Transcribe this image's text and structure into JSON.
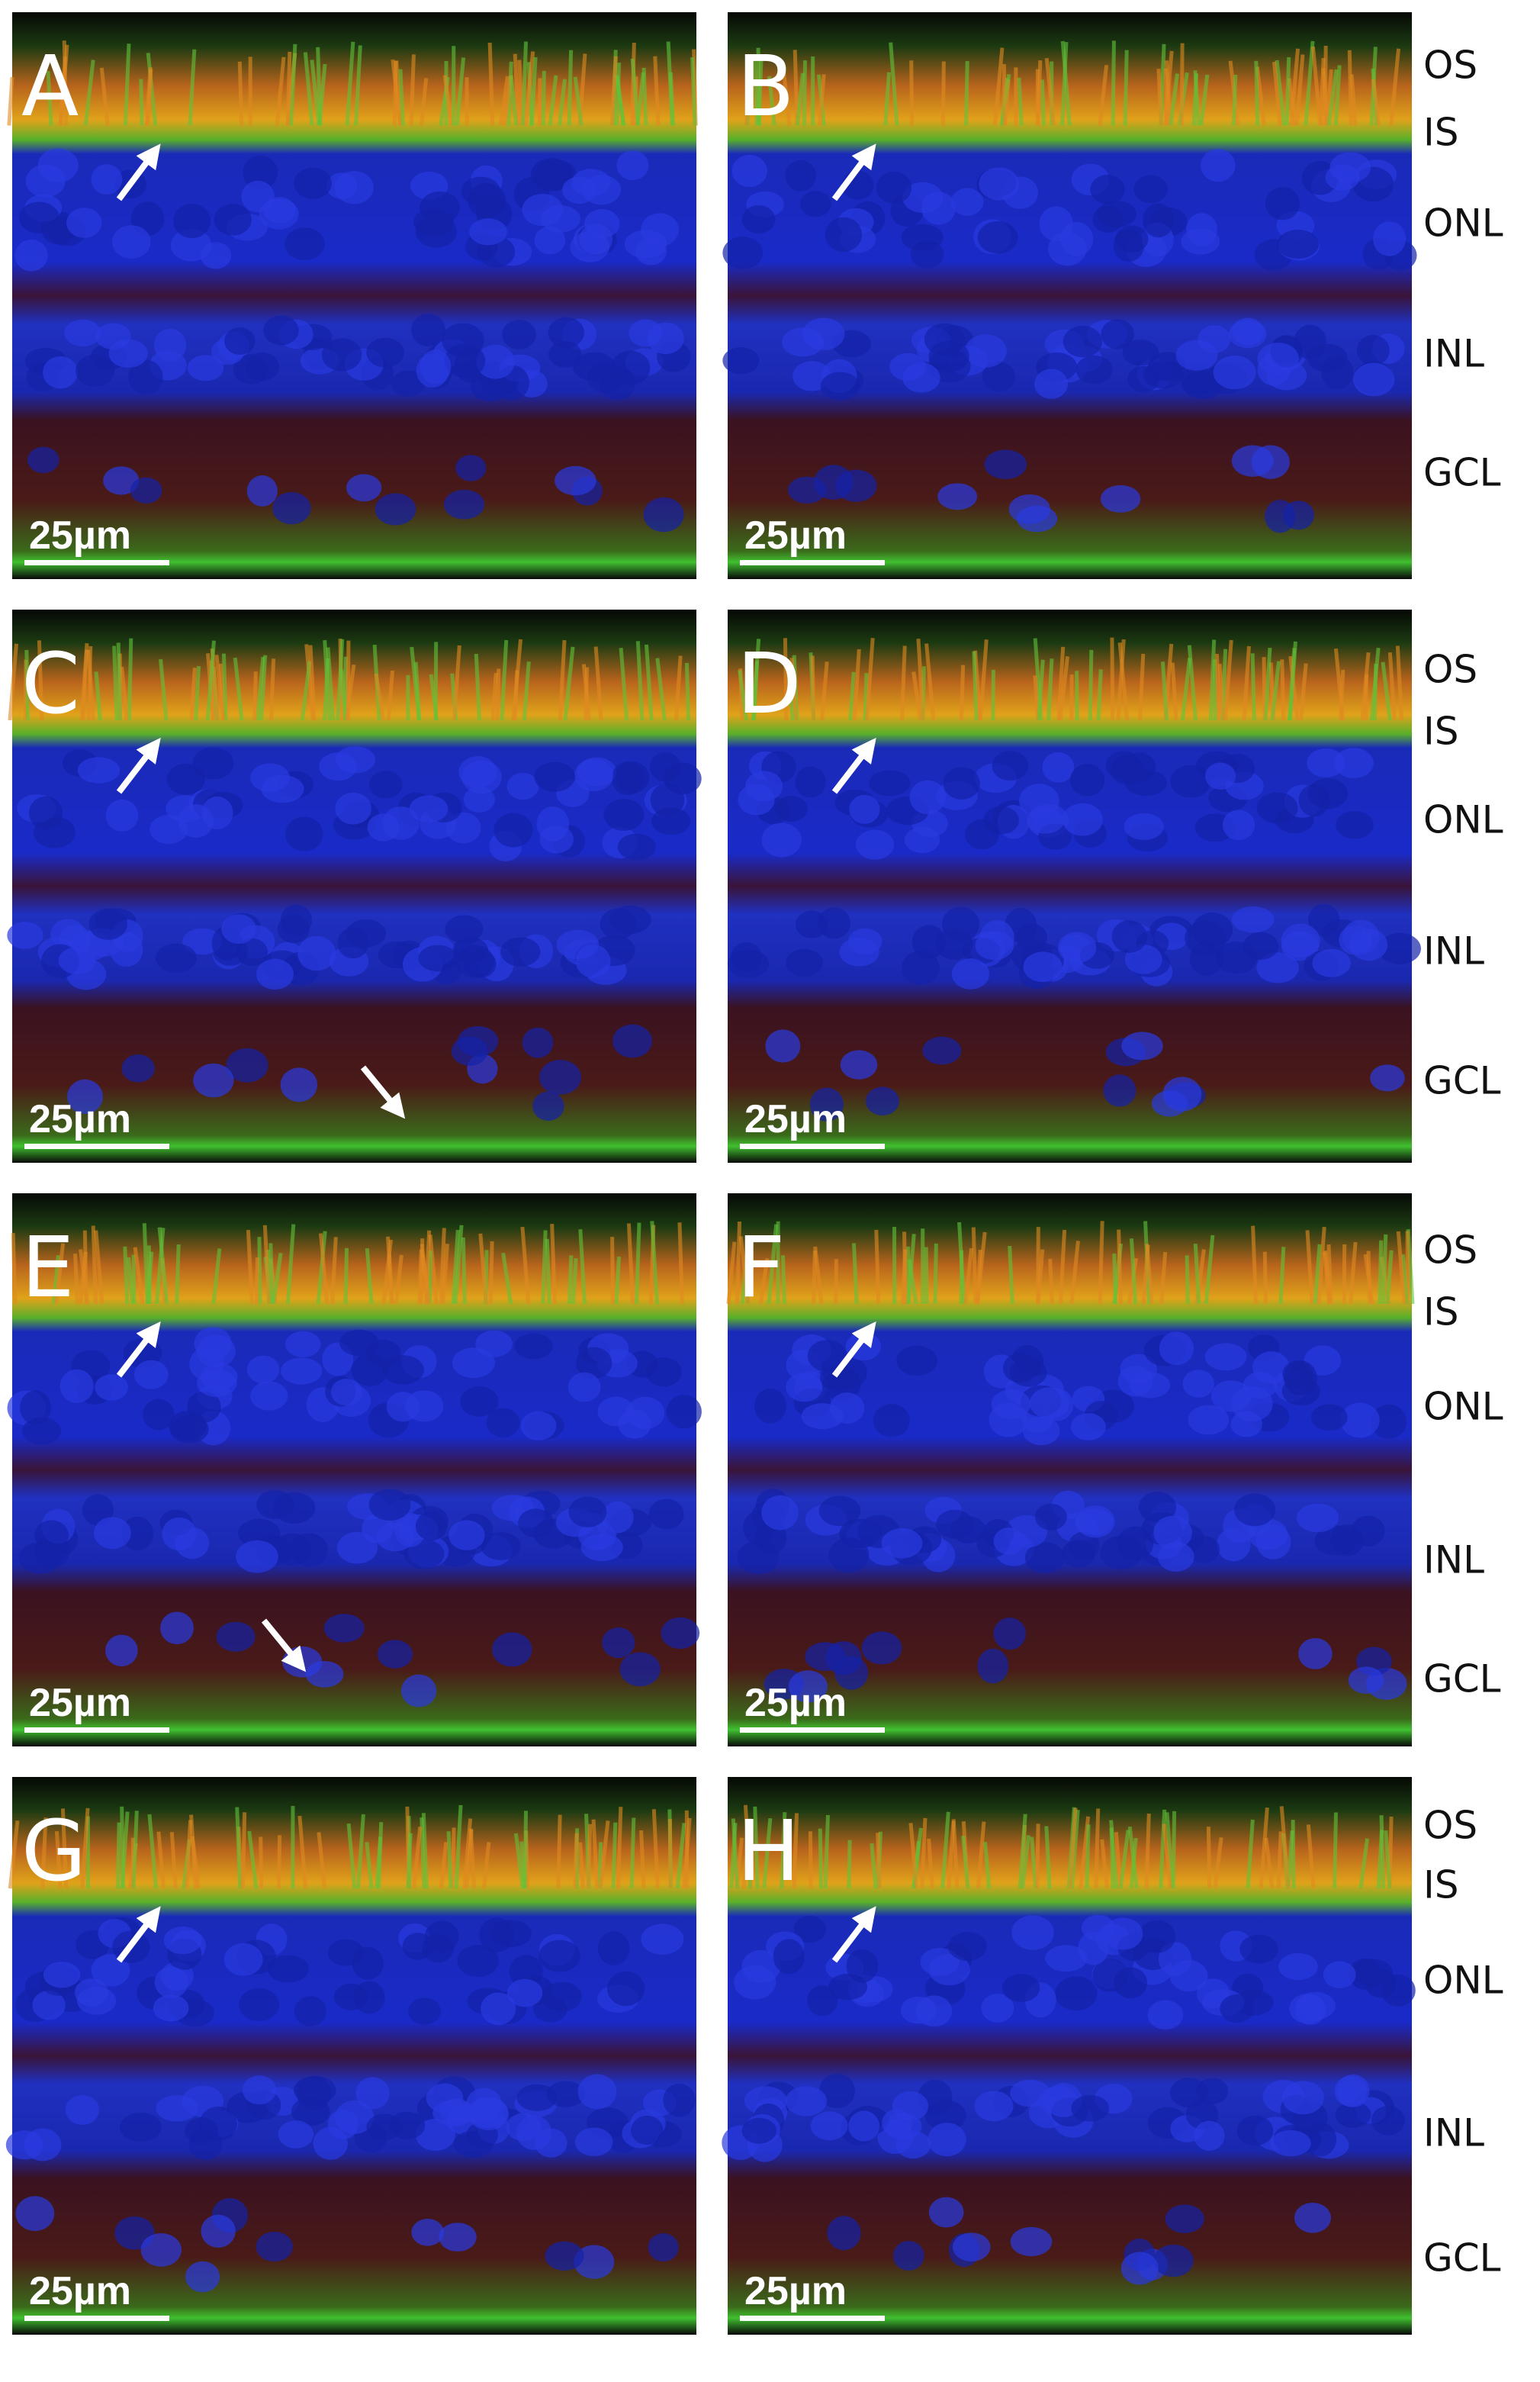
{
  "panels": [
    {
      "label": "A",
      "scale_bar": "25µm"
    },
    {
      "label": "B",
      "scale_bar": "25µm"
    },
    {
      "label": "C",
      "scale_bar": "25µm"
    },
    {
      "label": "D",
      "scale_bar": "25µm"
    },
    {
      "label": "E",
      "scale_bar": "25µm"
    },
    {
      "label": "F",
      "scale_bar": "25µm"
    },
    {
      "label": "G",
      "scale_bar": "25µm"
    },
    {
      "label": "H",
      "scale_bar": "25µm"
    }
  ],
  "layer_labels": [
    [
      "OS",
      "IS",
      "ONL",
      "INL",
      "GCL"
    ],
    [
      "OS",
      "IS",
      "ONL",
      "INL",
      "GCL"
    ],
    [
      "OS",
      "IS",
      "ONL",
      "INL",
      "GCL"
    ],
    [
      "OS",
      "IS",
      "ONL",
      "INL",
      "GCL"
    ]
  ]
}
